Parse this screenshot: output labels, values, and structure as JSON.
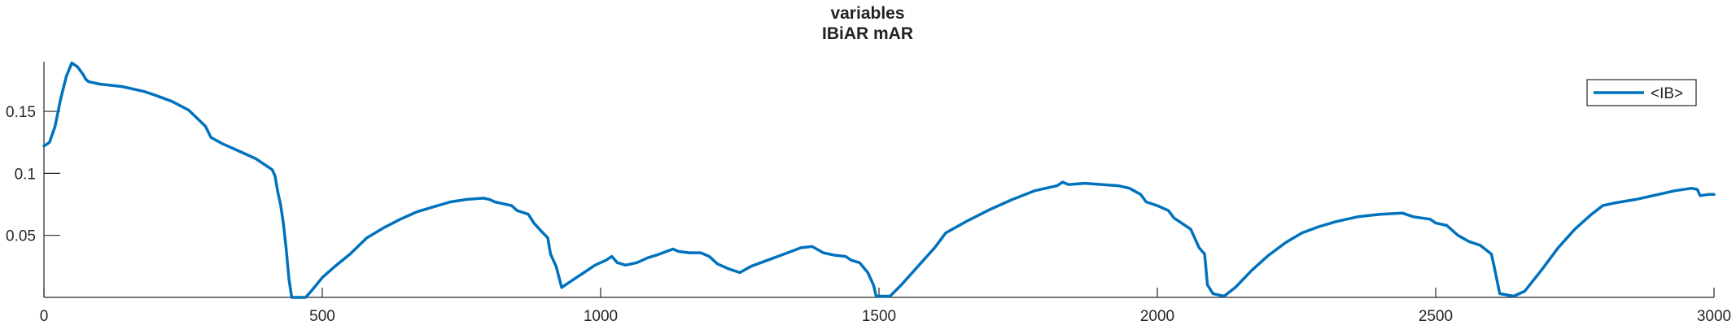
{
  "chart_data": {
    "type": "line",
    "title": "variables",
    "subtitle": "IBiAR mAR",
    "xlabel": "",
    "ylabel": "",
    "xlim": [
      0,
      3000
    ],
    "ylim": [
      0,
      0.19
    ],
    "x_ticks": [
      0,
      500,
      1000,
      1500,
      2000,
      2500,
      3000
    ],
    "x_tick_labels": [
      "0",
      "500",
      "1000",
      "1500",
      "2000",
      "2500",
      "3000"
    ],
    "y_ticks": [
      0.05,
      0.1,
      0.15
    ],
    "y_tick_labels": [
      "0.05",
      "0.1",
      "0.15"
    ],
    "grid": false,
    "legend": "top-right",
    "series": [
      {
        "name": "<IB>",
        "color": "#0072BD",
        "points": [
          [
            0,
            0.122
          ],
          [
            10,
            0.125
          ],
          [
            20,
            0.138
          ],
          [
            30,
            0.16
          ],
          [
            40,
            0.178
          ],
          [
            50,
            0.189
          ],
          [
            60,
            0.186
          ],
          [
            70,
            0.18
          ],
          [
            75,
            0.176
          ],
          [
            80,
            0.174
          ],
          [
            100,
            0.172
          ],
          [
            140,
            0.17
          ],
          [
            180,
            0.166
          ],
          [
            200,
            0.163
          ],
          [
            230,
            0.158
          ],
          [
            260,
            0.151
          ],
          [
            290,
            0.138
          ],
          [
            300,
            0.129
          ],
          [
            320,
            0.124
          ],
          [
            350,
            0.118
          ],
          [
            380,
            0.112
          ],
          [
            400,
            0.106
          ],
          [
            410,
            0.103
          ],
          [
            415,
            0.098
          ],
          [
            420,
            0.085
          ],
          [
            425,
            0.075
          ],
          [
            430,
            0.06
          ],
          [
            435,
            0.04
          ],
          [
            440,
            0.015
          ],
          [
            445,
            0.0
          ],
          [
            470,
            0.0
          ],
          [
            480,
            0.005
          ],
          [
            500,
            0.016
          ],
          [
            520,
            0.024
          ],
          [
            550,
            0.035
          ],
          [
            580,
            0.048
          ],
          [
            610,
            0.056
          ],
          [
            640,
            0.063
          ],
          [
            670,
            0.069
          ],
          [
            700,
            0.073
          ],
          [
            730,
            0.077
          ],
          [
            760,
            0.079
          ],
          [
            790,
            0.08
          ],
          [
            800,
            0.079
          ],
          [
            810,
            0.077
          ],
          [
            840,
            0.074
          ],
          [
            850,
            0.07
          ],
          [
            870,
            0.067
          ],
          [
            880,
            0.06
          ],
          [
            890,
            0.055
          ],
          [
            905,
            0.048
          ],
          [
            910,
            0.035
          ],
          [
            920,
            0.025
          ],
          [
            930,
            0.008
          ],
          [
            950,
            0.014
          ],
          [
            970,
            0.02
          ],
          [
            990,
            0.026
          ],
          [
            1010,
            0.03
          ],
          [
            1020,
            0.033
          ],
          [
            1030,
            0.028
          ],
          [
            1045,
            0.026
          ],
          [
            1065,
            0.028
          ],
          [
            1085,
            0.032
          ],
          [
            1100,
            0.034
          ],
          [
            1130,
            0.039
          ],
          [
            1140,
            0.037
          ],
          [
            1160,
            0.036
          ],
          [
            1180,
            0.036
          ],
          [
            1195,
            0.033
          ],
          [
            1210,
            0.027
          ],
          [
            1230,
            0.023
          ],
          [
            1250,
            0.02
          ],
          [
            1270,
            0.025
          ],
          [
            1300,
            0.03
          ],
          [
            1330,
            0.035
          ],
          [
            1360,
            0.04
          ],
          [
            1380,
            0.041
          ],
          [
            1400,
            0.036
          ],
          [
            1420,
            0.034
          ],
          [
            1440,
            0.033
          ],
          [
            1450,
            0.03
          ],
          [
            1465,
            0.028
          ],
          [
            1480,
            0.02
          ],
          [
            1490,
            0.01
          ],
          [
            1495,
            0.001
          ],
          [
            1520,
            0.001
          ],
          [
            1540,
            0.01
          ],
          [
            1560,
            0.02
          ],
          [
            1580,
            0.03
          ],
          [
            1600,
            0.04
          ],
          [
            1620,
            0.052
          ],
          [
            1660,
            0.062
          ],
          [
            1700,
            0.071
          ],
          [
            1740,
            0.079
          ],
          [
            1780,
            0.086
          ],
          [
            1820,
            0.09
          ],
          [
            1830,
            0.093
          ],
          [
            1840,
            0.091
          ],
          [
            1870,
            0.092
          ],
          [
            1900,
            0.091
          ],
          [
            1930,
            0.09
          ],
          [
            1950,
            0.088
          ],
          [
            1970,
            0.083
          ],
          [
            1980,
            0.077
          ],
          [
            2000,
            0.074
          ],
          [
            2020,
            0.07
          ],
          [
            2030,
            0.064
          ],
          [
            2050,
            0.058
          ],
          [
            2060,
            0.055
          ],
          [
            2065,
            0.05
          ],
          [
            2075,
            0.04
          ],
          [
            2085,
            0.035
          ],
          [
            2090,
            0.01
          ],
          [
            2100,
            0.003
          ],
          [
            2120,
            0.001
          ],
          [
            2140,
            0.008
          ],
          [
            2170,
            0.022
          ],
          [
            2200,
            0.034
          ],
          [
            2230,
            0.044
          ],
          [
            2260,
            0.052
          ],
          [
            2290,
            0.057
          ],
          [
            2320,
            0.061
          ],
          [
            2360,
            0.065
          ],
          [
            2400,
            0.067
          ],
          [
            2440,
            0.068
          ],
          [
            2460,
            0.065
          ],
          [
            2490,
            0.063
          ],
          [
            2500,
            0.06
          ],
          [
            2520,
            0.058
          ],
          [
            2540,
            0.05
          ],
          [
            2560,
            0.045
          ],
          [
            2580,
            0.042
          ],
          [
            2600,
            0.035
          ],
          [
            2605,
            0.025
          ],
          [
            2615,
            0.003
          ],
          [
            2640,
            0.001
          ],
          [
            2660,
            0.005
          ],
          [
            2690,
            0.022
          ],
          [
            2720,
            0.04
          ],
          [
            2750,
            0.055
          ],
          [
            2780,
            0.067
          ],
          [
            2800,
            0.074
          ],
          [
            2820,
            0.076
          ],
          [
            2860,
            0.079
          ],
          [
            2890,
            0.082
          ],
          [
            2930,
            0.086
          ],
          [
            2960,
            0.088
          ],
          [
            2970,
            0.087
          ],
          [
            2975,
            0.082
          ],
          [
            2990,
            0.083
          ],
          [
            3000,
            0.083
          ]
        ]
      }
    ]
  }
}
